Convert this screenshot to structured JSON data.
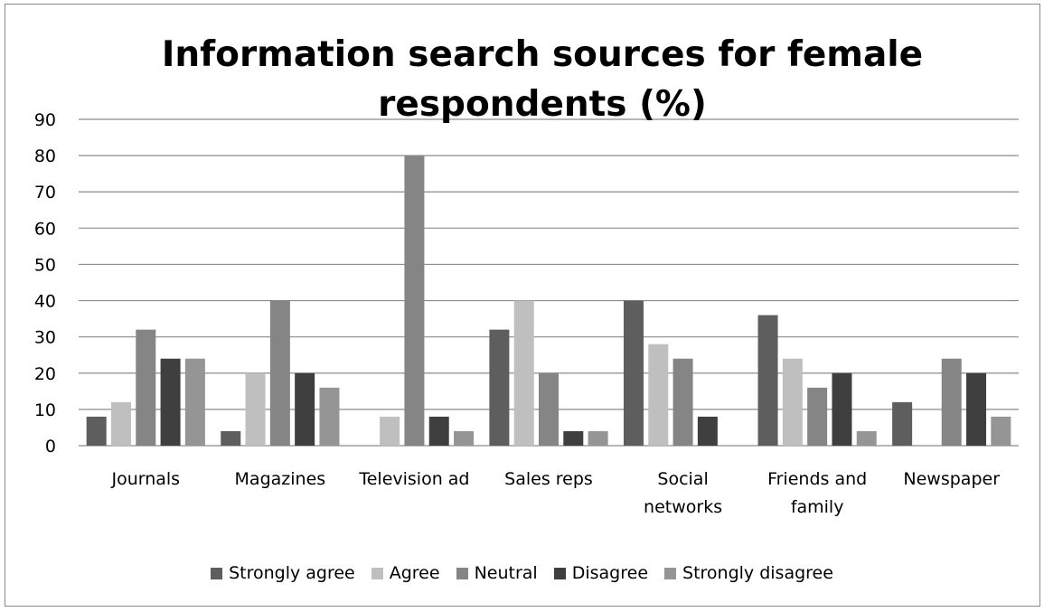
{
  "colors": {
    "strongly_agree": "#5e5e5e",
    "agree": "#bfbfbf",
    "neutral": "#858585",
    "disagree": "#3f3f3f",
    "strongly_disagree": "#959595",
    "grid": "#8c8c8c",
    "text": "#000000"
  },
  "chart_data": {
    "type": "bar",
    "title": "Information search sources for female respondents (%)",
    "xlabel": "",
    "ylabel": "",
    "ylim": [
      0,
      90
    ],
    "yticks": [
      0,
      10,
      20,
      30,
      40,
      50,
      60,
      70,
      80,
      90
    ],
    "grid": true,
    "legend_position": "bottom",
    "categories": [
      "Journals",
      "Magazines",
      "Television ad",
      "Sales reps",
      "Social networks",
      "Friends and family",
      "Newspaper"
    ],
    "category_lines": [
      [
        "Journals"
      ],
      [
        "Magazines"
      ],
      [
        "Television ad"
      ],
      [
        "Sales reps"
      ],
      [
        "Social",
        "networks"
      ],
      [
        "Friends and",
        "family"
      ],
      [
        "Newspaper"
      ]
    ],
    "series": [
      {
        "name": "Strongly agree",
        "color_key": "strongly_agree",
        "values": [
          8,
          4,
          0,
          32,
          40,
          36,
          12
        ]
      },
      {
        "name": "Agree",
        "color_key": "agree",
        "values": [
          12,
          20,
          8,
          40,
          28,
          24,
          0
        ]
      },
      {
        "name": "Neutral",
        "color_key": "neutral",
        "values": [
          32,
          40,
          80,
          20,
          24,
          16,
          24
        ]
      },
      {
        "name": "Disagree",
        "color_key": "disagree",
        "values": [
          24,
          20,
          8,
          4,
          8,
          20,
          20
        ]
      },
      {
        "name": "Strongly disagree",
        "color_key": "strongly_disagree",
        "values": [
          24,
          16,
          4,
          4,
          0,
          4,
          8
        ]
      }
    ]
  }
}
